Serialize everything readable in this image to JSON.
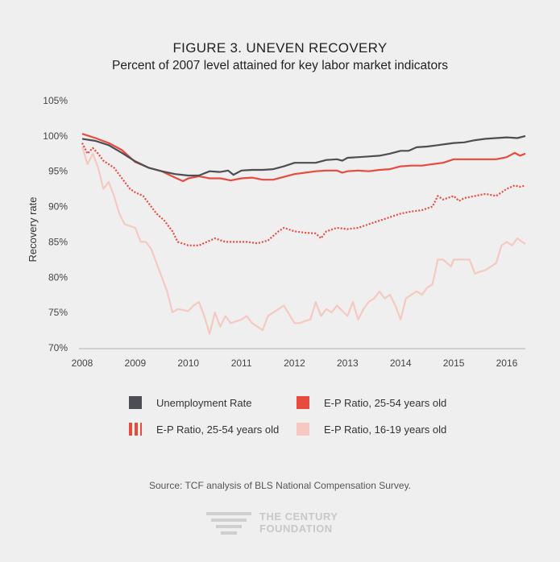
{
  "title": "FIGURE 3. UNEVEN RECOVERY",
  "subtitle": "Percent of 2007 level attained for key labor market indicators",
  "source": "Source: TCF analysis of BLS National Compensation Survey.",
  "logo": {
    "line1": "THE CENTURY",
    "line2": "FOUNDATION"
  },
  "colors": {
    "background": "#efefef",
    "gray": "#4d4d54",
    "red": "#e84a3d",
    "pink": "#f5c9c2"
  },
  "chart_data": {
    "type": "line",
    "title": "FIGURE 3. UNEVEN RECOVERY",
    "subtitle": "Percent of 2007 level attained for key labor market indicators",
    "xlabel": "",
    "ylabel": "Recovery rate",
    "xlim": [
      2008,
      2016.35
    ],
    "ylim": [
      70,
      105
    ],
    "x_ticks": [
      "2008",
      "2009",
      "2010",
      "2011",
      "2012",
      "2013",
      "2014",
      "2015",
      "2016"
    ],
    "y_ticks": [
      "70%",
      "75%",
      "80%",
      "85%",
      "90%",
      "95%",
      "100%",
      "105%"
    ],
    "grid": "none",
    "legend_position": "bottom",
    "series": [
      {
        "name": "Unemployment Rate",
        "style": "solid",
        "color": "#4d4d54",
        "x": [
          2008.0,
          2008.25,
          2008.5,
          2008.75,
          2009.0,
          2009.25,
          2009.5,
          2009.75,
          2010.0,
          2010.2,
          2010.4,
          2010.6,
          2010.75,
          2010.85,
          2011.0,
          2011.2,
          2011.4,
          2011.6,
          2011.8,
          2012.0,
          2012.2,
          2012.4,
          2012.6,
          2012.8,
          2012.9,
          2013.0,
          2013.2,
          2013.4,
          2013.6,
          2013.8,
          2014.0,
          2014.15,
          2014.3,
          2014.5,
          2014.7,
          2014.8,
          2014.9,
          2015.0,
          2015.2,
          2015.4,
          2015.6,
          2015.8,
          2016.0,
          2016.2,
          2016.35
        ],
        "y": [
          99.6,
          99.3,
          98.7,
          97.6,
          96.4,
          95.5,
          95.0,
          94.6,
          94.4,
          94.4,
          95.0,
          94.9,
          95.1,
          94.5,
          95.1,
          95.2,
          95.2,
          95.3,
          95.7,
          96.2,
          96.2,
          96.2,
          96.6,
          96.7,
          96.5,
          96.9,
          97.0,
          97.1,
          97.2,
          97.5,
          97.9,
          97.9,
          98.4,
          98.5,
          98.7,
          98.8,
          98.9,
          99.0,
          99.1,
          99.4,
          99.6,
          99.7,
          99.8,
          99.7,
          100.0
        ]
      },
      {
        "name": "E-P Ratio, 25-54 years old",
        "style": "solid",
        "color": "#e84a3d",
        "x": [
          2008.0,
          2008.25,
          2008.5,
          2008.75,
          2009.0,
          2009.25,
          2009.5,
          2009.75,
          2009.9,
          2010.0,
          2010.2,
          2010.4,
          2010.6,
          2010.8,
          2011.0,
          2011.2,
          2011.4,
          2011.6,
          2011.8,
          2012.0,
          2012.2,
          2012.4,
          2012.6,
          2012.8,
          2012.9,
          2013.0,
          2013.2,
          2013.4,
          2013.6,
          2013.8,
          2014.0,
          2014.2,
          2014.4,
          2014.6,
          2014.8,
          2015.0,
          2015.2,
          2015.4,
          2015.6,
          2015.8,
          2016.0,
          2016.15,
          2016.25,
          2016.35
        ],
        "y": [
          100.3,
          99.7,
          99.0,
          98.0,
          96.3,
          95.5,
          95.0,
          94.1,
          93.6,
          94.0,
          94.3,
          94.0,
          94.0,
          93.7,
          94.0,
          94.1,
          93.8,
          93.8,
          94.2,
          94.6,
          94.8,
          95.0,
          95.1,
          95.1,
          94.8,
          95.0,
          95.1,
          95.0,
          95.2,
          95.3,
          95.7,
          95.8,
          95.8,
          96.0,
          96.2,
          96.7,
          96.7,
          96.7,
          96.7,
          96.7,
          97.0,
          97.6,
          97.2,
          97.5
        ]
      },
      {
        "name": "E-P Ratio, 25-54 years old",
        "style": "dotted",
        "color": "#e84a3d",
        "x": [
          2008.0,
          2008.1,
          2008.2,
          2008.3,
          2008.4,
          2008.5,
          2008.6,
          2008.75,
          2008.9,
          2009.0,
          2009.15,
          2009.25,
          2009.4,
          2009.55,
          2009.7,
          2009.8,
          2010.0,
          2010.2,
          2010.35,
          2010.5,
          2010.7,
          2010.9,
          2011.1,
          2011.3,
          2011.5,
          2011.7,
          2011.8,
          2012.0,
          2012.2,
          2012.4,
          2012.5,
          2012.6,
          2012.8,
          2013.0,
          2013.2,
          2013.4,
          2013.6,
          2013.8,
          2014.0,
          2014.2,
          2014.4,
          2014.6,
          2014.7,
          2014.8,
          2015.0,
          2015.1,
          2015.2,
          2015.4,
          2015.6,
          2015.8,
          2016.0,
          2016.15,
          2016.25,
          2016.35
        ],
        "y": [
          99.0,
          97.5,
          98.3,
          97.5,
          96.5,
          96.0,
          95.5,
          94.0,
          92.5,
          92.0,
          91.5,
          90.5,
          89.0,
          88.0,
          86.5,
          85.0,
          84.5,
          84.5,
          85.0,
          85.5,
          85.0,
          85.0,
          85.0,
          84.8,
          85.2,
          86.5,
          87.0,
          86.5,
          86.3,
          86.2,
          85.5,
          86.5,
          87.0,
          86.8,
          87.0,
          87.5,
          88.0,
          88.5,
          89.0,
          89.3,
          89.5,
          90.0,
          91.5,
          91.0,
          91.5,
          90.8,
          91.2,
          91.5,
          91.8,
          91.5,
          92.5,
          93.0,
          92.8,
          93.0
        ]
      },
      {
        "name": "E-P Ratio, 16-19 years old",
        "style": "solid",
        "color": "#f5c9c2",
        "x": [
          2008.0,
          2008.1,
          2008.2,
          2008.3,
          2008.4,
          2008.5,
          2008.6,
          2008.7,
          2008.8,
          2009.0,
          2009.1,
          2009.2,
          2009.3,
          2009.4,
          2009.5,
          2009.6,
          2009.7,
          2009.8,
          2010.0,
          2010.1,
          2010.2,
          2010.3,
          2010.4,
          2010.5,
          2010.6,
          2010.7,
          2010.8,
          2011.0,
          2011.1,
          2011.2,
          2011.3,
          2011.4,
          2011.5,
          2011.6,
          2011.7,
          2011.8,
          2012.0,
          2012.1,
          2012.2,
          2012.3,
          2012.4,
          2012.5,
          2012.6,
          2012.7,
          2012.8,
          2013.0,
          2013.1,
          2013.2,
          2013.3,
          2013.4,
          2013.5,
          2013.6,
          2013.7,
          2013.8,
          2013.9,
          2014.0,
          2014.1,
          2014.2,
          2014.3,
          2014.4,
          2014.5,
          2014.6,
          2014.7,
          2014.8,
          2014.95,
          2015.0,
          2015.1,
          2015.2,
          2015.3,
          2015.4,
          2015.5,
          2015.6,
          2015.8,
          2015.9,
          2016.0,
          2016.1,
          2016.2,
          2016.35
        ],
        "y": [
          98.5,
          96.0,
          97.5,
          95.5,
          92.5,
          93.5,
          91.5,
          89.0,
          87.5,
          87.0,
          85.0,
          85.0,
          84.0,
          82.0,
          80.0,
          78.0,
          75.0,
          75.5,
          75.2,
          76.0,
          76.5,
          74.5,
          72.0,
          75.0,
          73.0,
          74.5,
          73.5,
          74.0,
          74.5,
          73.5,
          73.0,
          72.5,
          74.5,
          75.0,
          75.5,
          76.0,
          73.5,
          73.5,
          73.8,
          74.0,
          76.5,
          74.5,
          75.5,
          75.0,
          76.0,
          74.5,
          76.5,
          74.0,
          75.5,
          76.5,
          77.0,
          78.0,
          77.0,
          77.5,
          76.0,
          74.0,
          77.0,
          77.5,
          78.0,
          77.5,
          78.5,
          79.0,
          82.5,
          82.5,
          81.5,
          82.5,
          82.5,
          82.5,
          82.5,
          80.5,
          80.8,
          81.0,
          82.0,
          84.5,
          85.0,
          84.5,
          85.5,
          84.7
        ]
      }
    ]
  },
  "legend": {
    "items": [
      {
        "label": "Unemployment Rate",
        "style": "solid",
        "color": "#4d4d54"
      },
      {
        "label": "E-P Ratio, 25-54 years old",
        "style": "solid",
        "color": "#e84a3d"
      },
      {
        "label": "E-P Ratio, 25-54 years old",
        "style": "dotted",
        "color": "#e84a3d"
      },
      {
        "label": "E-P Ratio, 16-19 years old",
        "style": "solid",
        "color": "#f5c9c2"
      }
    ]
  }
}
